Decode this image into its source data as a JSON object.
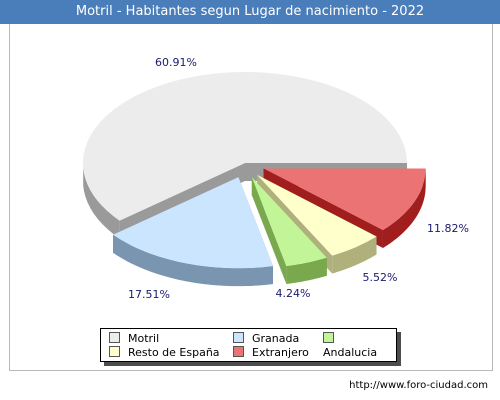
{
  "header": {
    "title": "Motril - Habitantes segun Lugar de nacimiento - 2022"
  },
  "footer": {
    "source": "http://www.foro-ciudad.com"
  },
  "chart_data": {
    "type": "pie",
    "title": "Motril - Habitantes segun Lugar de nacimiento - 2022",
    "categories": [
      "Motril",
      "Granada",
      "Andalucia",
      "Resto de España",
      "Extranjero"
    ],
    "values": [
      60.91,
      17.51,
      4.24,
      5.52,
      11.82
    ],
    "value_labels": [
      "60.91%",
      "17.51%",
      "4.24%",
      "5.52%",
      "11.82%"
    ],
    "colors": [
      "#ececec",
      "#cce5ff",
      "#c2f598",
      "#ffffcc",
      "#ec7373"
    ],
    "side_colors": [
      "#9a9a9a",
      "#7a95b0",
      "#7aa84f",
      "#b0b07c",
      "#a01e1e"
    ],
    "exploded": [
      false,
      true,
      true,
      true,
      true
    ],
    "legend_position": "bottom",
    "grid": false
  }
}
